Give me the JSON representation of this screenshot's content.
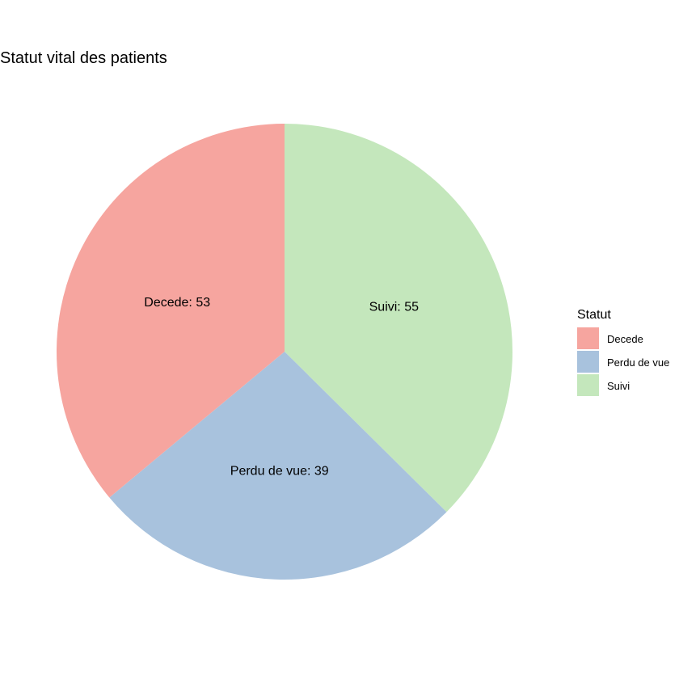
{
  "chart_data": {
    "type": "pie",
    "title": "Statut vital des patients",
    "slices": [
      {
        "label": "Suivi",
        "value": 55,
        "color": "#C4E7BC",
        "text": "Suivi: 55"
      },
      {
        "label": "Perdu de vue",
        "value": 39,
        "color": "#A8C2DD",
        "text": "Perdu de vue: 39"
      },
      {
        "label": "Decede",
        "value": 53,
        "color": "#F6A59F",
        "text": "Decede: 53"
      }
    ],
    "legend": {
      "title": "Statut",
      "position": "right",
      "entries": [
        {
          "label": "Decede",
          "color": "#F6A59F"
        },
        {
          "label": "Perdu de vue",
          "color": "#A8C2DD"
        },
        {
          "label": "Suivi",
          "color": "#C4E7BC"
        }
      ]
    },
    "start": "top",
    "direction": "clockwise"
  }
}
